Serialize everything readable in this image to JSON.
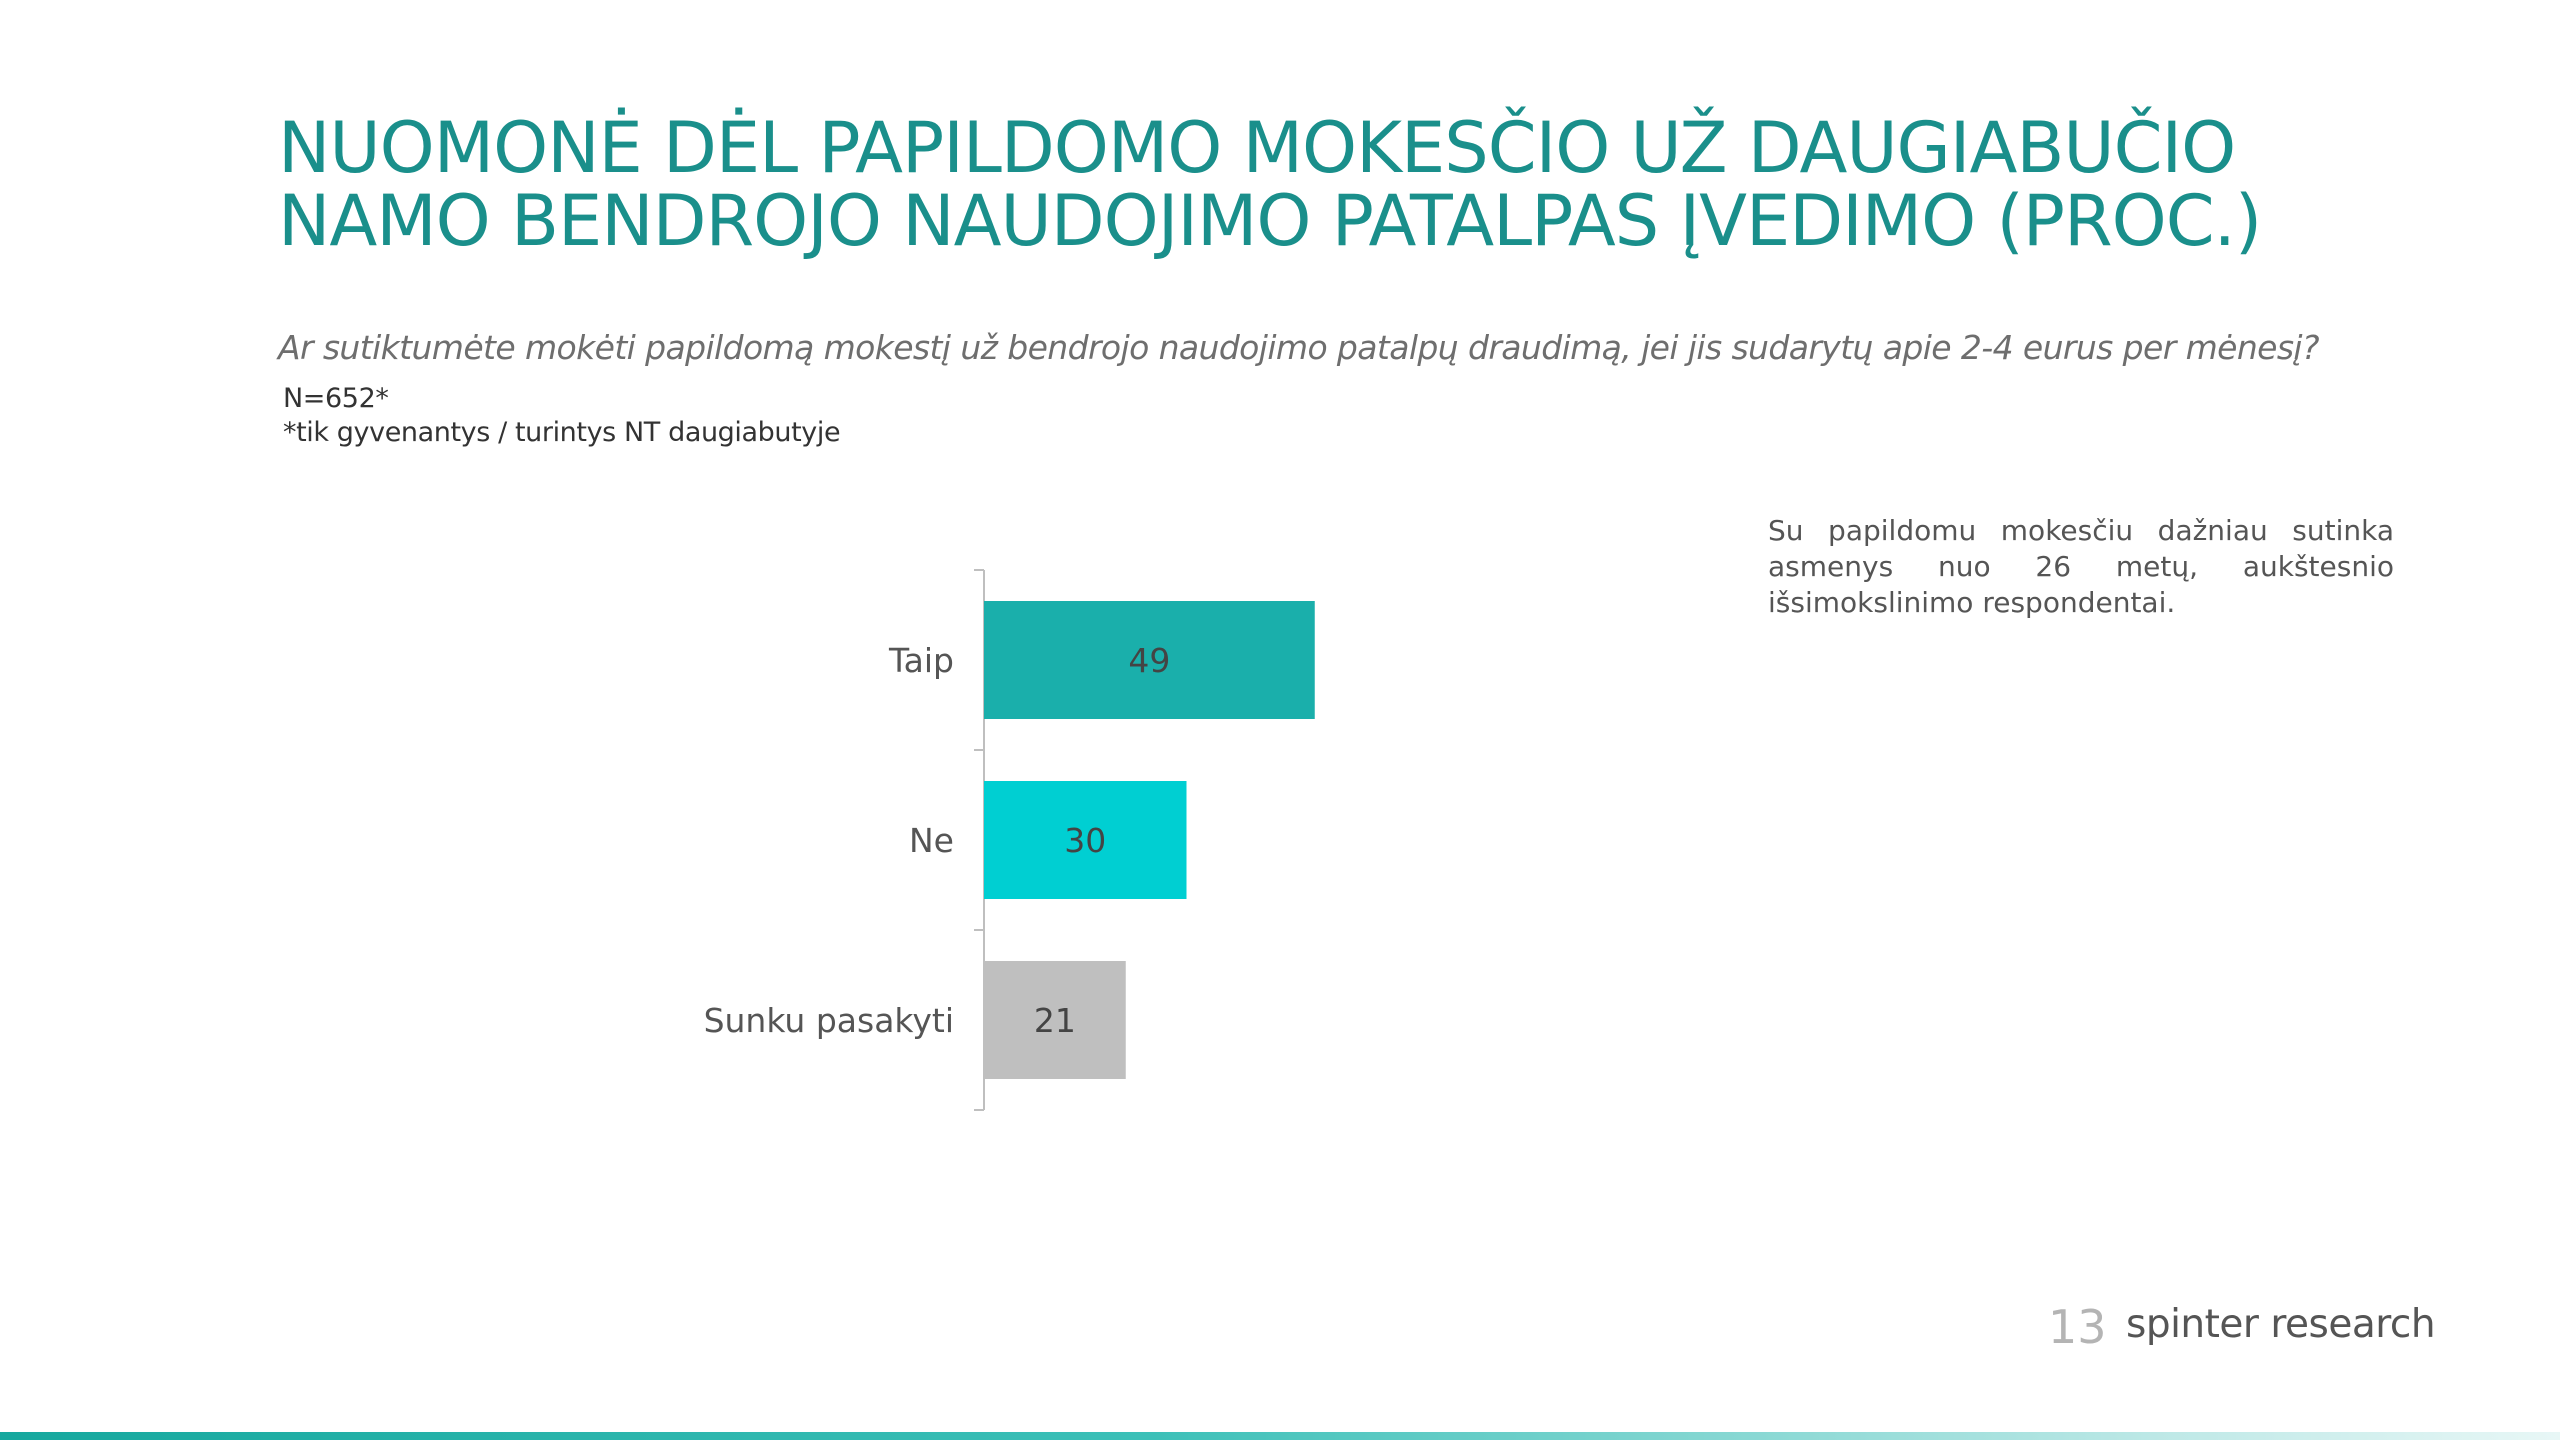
{
  "slide": {
    "title_line1": "NUOMONĖ DĖL PAPILDOMO MOKESČIO UŽ DAUGIABUČIO",
    "title_line2": "NAMO BENDROJO NAUDOJIMO PATALPAS ĮVEDIMO (PROC.)",
    "question": "Ar sutiktumėte mokėti papildomą mokestį už bendrojo naudojimo patalpų draudimą, jei jis sudarytų apie 2-4 eurus per mėnesį?",
    "sample_size": "N=652*",
    "sample_note": "*tik gyvenantys / turintys NT daugiabutyje",
    "insight": "Su papildomu mokesčiu dažniau sutinka asmenys nuo 26 metų, aukštesnio išsimokslinimo respondentai.",
    "page_number": "13",
    "brand": "spinter research"
  },
  "chart_data": {
    "type": "bar",
    "orientation": "horizontal",
    "categories": [
      "Taip",
      "Ne",
      "Sunku pasakyti"
    ],
    "values": [
      49,
      30,
      21
    ],
    "colors": [
      "#1aafab",
      "#00cfd2",
      "#bfbfbf"
    ],
    "xlim": [
      0,
      100
    ],
    "grid": false
  }
}
